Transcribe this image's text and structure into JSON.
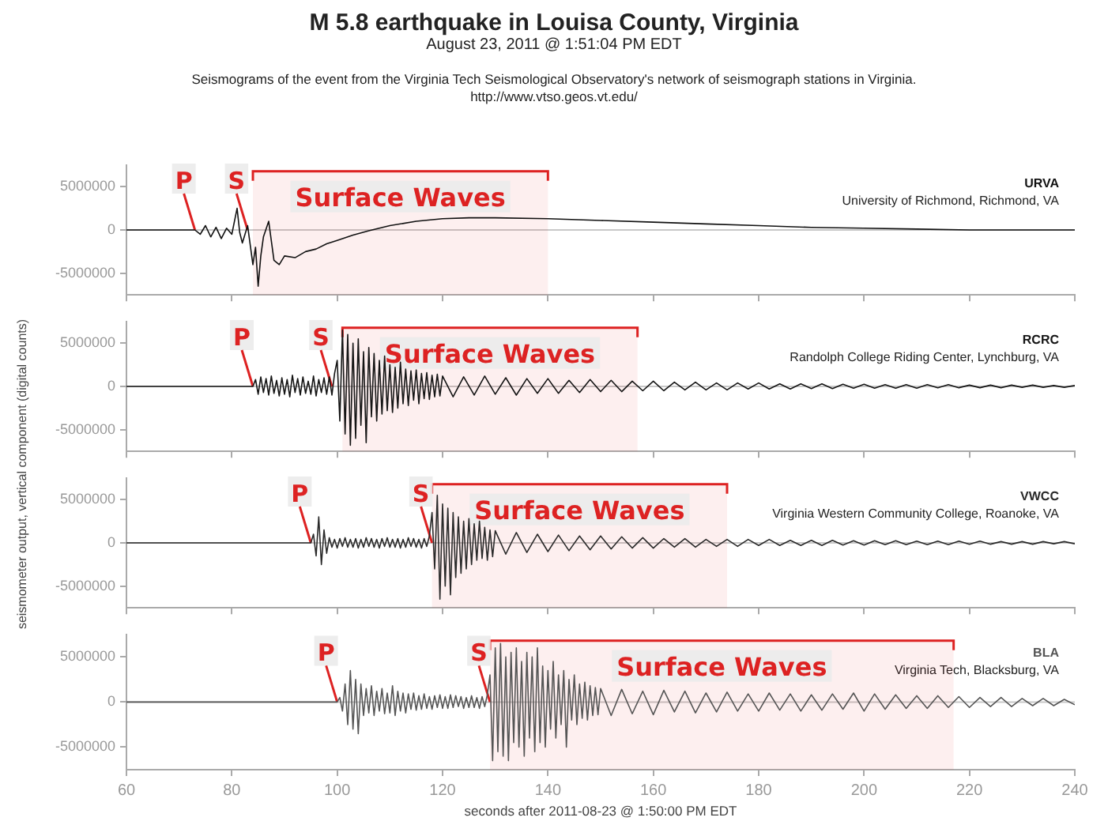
{
  "chart_data": [
    {
      "type": "line",
      "title": "M 5.8 earthquake in Louisa County, Virginia",
      "subtitle": "August 23, 2011 @ 1:51:04 PM EDT",
      "ylabel": "seismometer output, vertical component (digital counts)",
      "annotations": [
        "Seismograms of the event from the Virginia Tech Seismological Observatory's network of seismograph stations in Virginia.",
        "http://www.vtso.geos.vt.edu/",
        {
          "text": "P",
          "x": 73,
          "y": 0
        },
        {
          "text": "S",
          "x": 83,
          "y": 0
        },
        "University of Richmond, Richmond, VA"
      ],
      "series": [
        {
          "name": "URVA",
          "color": "#111111",
          "x": [
            60,
            72,
            73,
            74,
            75,
            76,
            77,
            78,
            79,
            80,
            81,
            81.5,
            82,
            83,
            84,
            84.5,
            85,
            85.5,
            86,
            87,
            88,
            89,
            90,
            92,
            94,
            96,
            98,
            100,
            103,
            106,
            110,
            115,
            120,
            125,
            130,
            140,
            150,
            160,
            170,
            180,
            190,
            200,
            210,
            220,
            230,
            240
          ],
          "values": [
            0,
            0,
            0,
            -500000,
            500000,
            -800000,
            300000,
            -1000000,
            200000,
            -500000,
            2500000,
            -300000,
            -1500000,
            500000,
            -4000000,
            -2000000,
            -6500000,
            -3000000,
            -800000,
            1000000,
            -3500000,
            -4000000,
            -3000000,
            -3200000,
            -2500000,
            -2200000,
            -1600000,
            -1200000,
            -600000,
            -100000,
            500000,
            1000000,
            1300000,
            1400000,
            1400000,
            1300000,
            1100000,
            900000,
            700000,
            500000,
            300000,
            200000,
            100000,
            0,
            0,
            0
          ]
        }
      ],
      "xlim": [
        60,
        240
      ],
      "xticks": [
        60,
        80,
        100,
        120,
        140,
        160,
        180,
        200,
        220,
        240
      ],
      "ylim": [
        -7500000,
        7500000
      ],
      "yticks": [
        -5000000,
        0,
        5000000
      ],
      "tick_labels": "y",
      "ref_lines": [
        {
          "axis": "y",
          "value": 0,
          "color": "#c8c8c8"
        }
      ],
      "bands": [
        {
          "axis": "x",
          "from": 84,
          "to": 140,
          "label": "Surface Waves",
          "color": "#dd2222"
        }
      ]
    },
    {
      "type": "line",
      "annotations": [
        {
          "text": "P",
          "x": 84,
          "y": 0
        },
        {
          "text": "S",
          "x": 99,
          "y": 0
        },
        "Randolph College Riding Center, Lynchburg, VA"
      ],
      "series": [
        {
          "name": "RCRC",
          "color": "#151515",
          "x": [
            60,
            84,
            84.5,
            85,
            85.5,
            86,
            86.5,
            87,
            87.5,
            88,
            88.5,
            89,
            89.5,
            90,
            90.5,
            91,
            91.5,
            92,
            92.5,
            93,
            93.5,
            94,
            94.5,
            95,
            95.5,
            96,
            96.5,
            97,
            97.5,
            98,
            98.5,
            99,
            99.5,
            100,
            100.5,
            101,
            101.5,
            102,
            102.5,
            103,
            103.5,
            104,
            104.5,
            105,
            105.5,
            106,
            106.5,
            107,
            107.5,
            108,
            108.5,
            109,
            109.5,
            110,
            110.5,
            111,
            111.5,
            112,
            112.5,
            113,
            113.5,
            114,
            114.5,
            115,
            115.5,
            116,
            116.5,
            117,
            117.5,
            118,
            118.5,
            119,
            119.5,
            120,
            122,
            124,
            126,
            128,
            130,
            132,
            134,
            136,
            138,
            140,
            142,
            144,
            146,
            148,
            150,
            152,
            154,
            156,
            158,
            160,
            162,
            164,
            166,
            168,
            170,
            172,
            174,
            176,
            178,
            180,
            182,
            184,
            186,
            188,
            190,
            192,
            194,
            196,
            198,
            200,
            202,
            204,
            206,
            208,
            210,
            212,
            214,
            216,
            218,
            220,
            222,
            224,
            226,
            228,
            230,
            232,
            234,
            236,
            238,
            240
          ],
          "values": [
            0,
            0,
            800000,
            -900000,
            1100000,
            -700000,
            900000,
            -1000000,
            1200000,
            -800000,
            700000,
            -1100000,
            1000000,
            -900000,
            800000,
            -1200000,
            1300000,
            -700000,
            900000,
            -1000000,
            1100000,
            -800000,
            600000,
            -900000,
            1200000,
            -1100000,
            800000,
            -700000,
            1000000,
            -900000,
            1100000,
            -1000000,
            1500000,
            3000000,
            -4000000,
            6500000,
            -5500000,
            6000000,
            -6800000,
            5000000,
            -6000000,
            5500000,
            -4500000,
            4000000,
            -6500000,
            4500000,
            -3500000,
            3800000,
            -4000000,
            3000000,
            -3200000,
            3500000,
            -2800000,
            2500000,
            -3000000,
            2200000,
            -2500000,
            2800000,
            -2000000,
            2000000,
            -2200000,
            1800000,
            -1600000,
            1900000,
            -2000000,
            1500000,
            -1400000,
            1600000,
            -1500000,
            1300000,
            -1200000,
            1400000,
            -1100000,
            1200000,
            -1200000,
            1100000,
            -1000000,
            1200000,
            -900000,
            1000000,
            -1000000,
            900000,
            -800000,
            900000,
            -800000,
            700000,
            -700000,
            800000,
            -600000,
            700000,
            -600000,
            600000,
            -500000,
            600000,
            -500000,
            500000,
            -400000,
            500000,
            -400000,
            400000,
            -400000,
            400000,
            -300000,
            400000,
            -300000,
            300000,
            -300000,
            300000,
            -250000,
            300000,
            -250000,
            250000,
            -200000,
            250000,
            -200000,
            200000,
            -200000,
            200000,
            -200000,
            200000,
            -150000,
            200000,
            -150000,
            150000,
            -150000,
            150000,
            -150000,
            150000,
            -100000,
            150000,
            -100000,
            100000,
            -100000,
            100000
          ]
        }
      ],
      "xlim": [
        60,
        240
      ],
      "xticks": [
        60,
        80,
        100,
        120,
        140,
        160,
        180,
        200,
        220,
        240
      ],
      "ylim": [
        -7500000,
        7500000
      ],
      "yticks": [
        -5000000,
        0,
        5000000
      ],
      "tick_labels": "y",
      "ref_lines": [
        {
          "axis": "y",
          "value": 0,
          "color": "#c8c8c8"
        }
      ],
      "bands": [
        {
          "axis": "x",
          "from": 101,
          "to": 157,
          "label": "Surface Waves",
          "color": "#dd2222"
        }
      ]
    },
    {
      "type": "line",
      "annotations": [
        {
          "text": "P",
          "x": 95,
          "y": 0
        },
        {
          "text": "S",
          "x": 118,
          "y": 0
        },
        "Virginia Western Community College, Roanoke, VA"
      ],
      "series": [
        {
          "name": "VWCC",
          "color": "#2a2a2a",
          "x": [
            60,
            95,
            95.5,
            96,
            96.5,
            97,
            97.5,
            98,
            98.5,
            99,
            99.5,
            100,
            100.5,
            101,
            101.5,
            102,
            102.5,
            103,
            103.5,
            104,
            104.5,
            105,
            105.5,
            106,
            106.5,
            107,
            107.5,
            108,
            108.5,
            109,
            109.5,
            110,
            110.5,
            111,
            111.5,
            112,
            112.5,
            113,
            113.5,
            114,
            114.5,
            115,
            115.5,
            116,
            116.5,
            117,
            117.5,
            118,
            118.5,
            119,
            119.5,
            120,
            120.5,
            121,
            121.5,
            122,
            122.5,
            123,
            123.5,
            124,
            124.5,
            125,
            125.5,
            126,
            126.5,
            127,
            127.5,
            128,
            128.5,
            129,
            129.5,
            130,
            132,
            134,
            136,
            138,
            140,
            142,
            144,
            146,
            148,
            150,
            152,
            154,
            156,
            158,
            160,
            162,
            164,
            166,
            168,
            170,
            172,
            174,
            176,
            178,
            180,
            182,
            184,
            186,
            188,
            190,
            192,
            194,
            196,
            198,
            200,
            202,
            204,
            206,
            208,
            210,
            212,
            214,
            216,
            218,
            220,
            222,
            224,
            226,
            228,
            230,
            232,
            234,
            236,
            238,
            240
          ],
          "values": [
            0,
            0,
            1000000,
            -1500000,
            3000000,
            -2500000,
            1500000,
            -1200000,
            600000,
            -500000,
            400000,
            -600000,
            500000,
            -400000,
            600000,
            -500000,
            400000,
            -500000,
            500000,
            -600000,
            400000,
            -500000,
            600000,
            -400000,
            500000,
            -500000,
            400000,
            -600000,
            500000,
            -400000,
            600000,
            -500000,
            400000,
            -500000,
            500000,
            -600000,
            400000,
            -500000,
            600000,
            -400000,
            500000,
            -500000,
            400000,
            -600000,
            500000,
            -400000,
            800000,
            3500000,
            -3000000,
            5500000,
            -6500000,
            4500000,
            -5000000,
            4000000,
            -6000000,
            3500000,
            -4000000,
            3000000,
            -3500000,
            2500000,
            -3000000,
            2800000,
            -2500000,
            2200000,
            -2000000,
            2500000,
            -1800000,
            1800000,
            -2000000,
            1500000,
            -1600000,
            1400000,
            -1300000,
            1200000,
            -1100000,
            1000000,
            -1000000,
            900000,
            -900000,
            800000,
            -800000,
            800000,
            -700000,
            700000,
            -600000,
            600000,
            -600000,
            500000,
            -500000,
            500000,
            -500000,
            400000,
            -400000,
            400000,
            -400000,
            400000,
            -300000,
            400000,
            -300000,
            300000,
            -300000,
            300000,
            -300000,
            300000,
            -250000,
            250000,
            -250000,
            250000,
            -200000,
            250000,
            -200000,
            200000,
            -200000,
            200000,
            -200000,
            200000,
            -150000,
            200000,
            -150000,
            150000,
            -150000,
            150000,
            -150000,
            150000,
            -100000,
            150000,
            -100000
          ]
        }
      ],
      "xlim": [
        60,
        240
      ],
      "xticks": [
        60,
        80,
        100,
        120,
        140,
        160,
        180,
        200,
        220,
        240
      ],
      "ylim": [
        -7500000,
        7500000
      ],
      "yticks": [
        -5000000,
        0,
        5000000
      ],
      "tick_labels": "y",
      "ref_lines": [
        {
          "axis": "y",
          "value": 0,
          "color": "#c8c8c8"
        }
      ],
      "bands": [
        {
          "axis": "x",
          "from": 118,
          "to": 174,
          "label": "Surface Waves",
          "color": "#dd2222"
        }
      ]
    },
    {
      "type": "line",
      "xlabel": "seconds after 2011-08-23 @ 1:50:00 PM EDT",
      "annotations": [
        {
          "text": "P",
          "x": 100,
          "y": 0
        },
        {
          "text": "S",
          "x": 129,
          "y": 0
        },
        "Virginia Tech, Blacksburg, VA"
      ],
      "series": [
        {
          "name": "BLA",
          "color": "#555555",
          "x": [
            60,
            100,
            100.5,
            101,
            101.5,
            102,
            102.5,
            103,
            103.5,
            104,
            104.5,
            105,
            105.5,
            106,
            106.5,
            107,
            107.5,
            108,
            108.5,
            109,
            109.5,
            110,
            110.5,
            111,
            111.5,
            112,
            112.5,
            113,
            113.5,
            114,
            114.5,
            115,
            115.5,
            116,
            116.5,
            117,
            117.5,
            118,
            118.5,
            119,
            119.5,
            120,
            120.5,
            121,
            121.5,
            122,
            122.5,
            123,
            123.5,
            124,
            124.5,
            125,
            125.5,
            126,
            126.5,
            127,
            127.5,
            128,
            128.5,
            129,
            129.5,
            130,
            130.5,
            131,
            131.5,
            132,
            132.5,
            133,
            133.5,
            134,
            134.5,
            135,
            135.5,
            136,
            136.5,
            137,
            137.5,
            138,
            138.5,
            139,
            139.5,
            140,
            140.5,
            141,
            141.5,
            142,
            142.5,
            143,
            143.5,
            144,
            144.5,
            145,
            145.5,
            146,
            146.5,
            147,
            147.5,
            148,
            148.5,
            149,
            149.5,
            150,
            152,
            154,
            156,
            158,
            160,
            162,
            164,
            166,
            168,
            170,
            172,
            174,
            176,
            178,
            180,
            182,
            184,
            186,
            188,
            190,
            192,
            194,
            196,
            198,
            200,
            202,
            204,
            206,
            208,
            210,
            212,
            214,
            216,
            218,
            220,
            222,
            224,
            226,
            228,
            230,
            232,
            234,
            236,
            238,
            240
          ],
          "values": [
            0,
            0,
            500000,
            -1000000,
            2000000,
            -2500000,
            3500000,
            -3000000,
            2500000,
            -3500000,
            2000000,
            -1500000,
            1500000,
            -1200000,
            1800000,
            -1500000,
            1200000,
            -1000000,
            1500000,
            -1300000,
            1000000,
            -1200000,
            1800000,
            -1500000,
            1200000,
            -1000000,
            1000000,
            -1200000,
            900000,
            -800000,
            1000000,
            -900000,
            700000,
            -800000,
            900000,
            -700000,
            600000,
            -800000,
            700000,
            -600000,
            800000,
            -700000,
            600000,
            -700000,
            800000,
            -600000,
            700000,
            -500000,
            600000,
            -700000,
            500000,
            -600000,
            700000,
            -600000,
            500000,
            -700000,
            600000,
            -500000,
            800000,
            3000000,
            -6500000,
            6000000,
            -5500000,
            6500000,
            -6000000,
            5000000,
            -6500000,
            5500000,
            -4500000,
            6000000,
            -5000000,
            4500000,
            -6000000,
            5500000,
            -4000000,
            5000000,
            -5500000,
            6000000,
            -4500000,
            4000000,
            -5000000,
            3500000,
            -3000000,
            4500000,
            -4000000,
            3000000,
            -2500000,
            3500000,
            -5000000,
            2500000,
            -2000000,
            3000000,
            -2500000,
            2000000,
            -1800000,
            2200000,
            -2000000,
            1800000,
            -1500000,
            1600000,
            -1400000,
            1500000,
            -1500000,
            1400000,
            -1300000,
            1200000,
            -1400000,
            1300000,
            -1100000,
            1200000,
            -1200000,
            1000000,
            -1100000,
            1100000,
            -1000000,
            900000,
            -1000000,
            1000000,
            -900000,
            900000,
            -1000000,
            800000,
            -900000,
            900000,
            -800000,
            1000000,
            -1000000,
            900000,
            -800000,
            800000,
            -700000,
            700000,
            -700000,
            700000,
            -600000,
            600000,
            -600000,
            500000,
            -500000,
            500000,
            -500000,
            400000,
            -400000,
            400000,
            -400000,
            300000,
            -300000
          ]
        }
      ],
      "xlim": [
        60,
        240
      ],
      "xticks": [
        60,
        80,
        100,
        120,
        140,
        160,
        180,
        200,
        220,
        240
      ],
      "ylim": [
        -7500000,
        7500000
      ],
      "yticks": [
        -5000000,
        0,
        5000000
      ],
      "ref_lines": [
        {
          "axis": "y",
          "value": 0,
          "color": "#c8c8c8"
        }
      ],
      "bands": [
        {
          "axis": "x",
          "from": 129,
          "to": 217,
          "label": "Surface Waves",
          "color": "#dd2222"
        }
      ]
    }
  ]
}
